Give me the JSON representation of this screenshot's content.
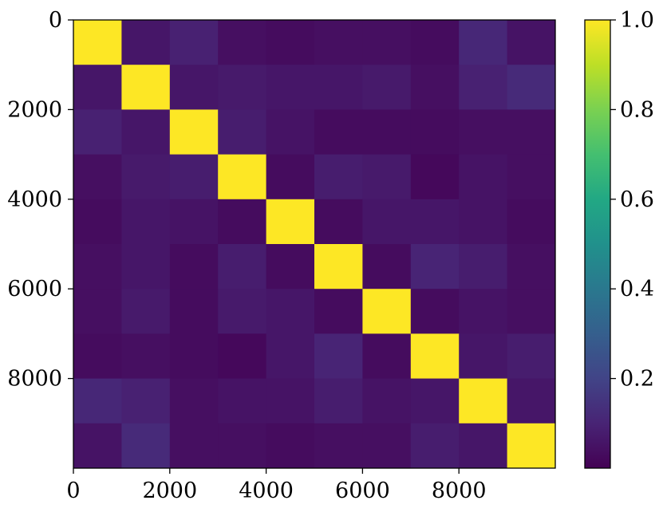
{
  "chart_data": {
    "type": "heatmap",
    "title": "",
    "xlabel": "",
    "ylabel": "",
    "x_range": [
      0,
      10000
    ],
    "y_range": [
      0,
      10000
    ],
    "y_inverted": true,
    "x_ticks": [
      0,
      2000,
      4000,
      6000,
      8000
    ],
    "y_ticks": [
      0,
      2000,
      4000,
      6000,
      8000
    ],
    "x_tick_labels": [
      "0",
      "2000",
      "4000",
      "6000",
      "8000"
    ],
    "y_tick_labels": [
      "0",
      "2000",
      "4000",
      "6000",
      "8000"
    ],
    "block_size": 1000,
    "colormap": "viridis",
    "colorbar": {
      "min": 0.0,
      "max": 1.0,
      "ticks": [
        0.2,
        0.4,
        0.6,
        0.8,
        1.0
      ],
      "tick_labels": [
        "0.2",
        "0.4",
        "0.6",
        "0.8",
        "1.0"
      ],
      "placement": "right"
    },
    "matrix": [
      [
        1.0,
        0.06,
        0.09,
        0.04,
        0.03,
        0.04,
        0.04,
        0.03,
        0.11,
        0.05
      ],
      [
        0.06,
        1.0,
        0.06,
        0.07,
        0.06,
        0.06,
        0.07,
        0.04,
        0.09,
        0.12
      ],
      [
        0.09,
        0.06,
        1.0,
        0.08,
        0.05,
        0.03,
        0.03,
        0.03,
        0.04,
        0.04
      ],
      [
        0.04,
        0.07,
        0.08,
        1.0,
        0.03,
        0.08,
        0.07,
        0.02,
        0.05,
        0.04
      ],
      [
        0.03,
        0.06,
        0.05,
        0.03,
        1.0,
        0.03,
        0.06,
        0.06,
        0.05,
        0.03
      ],
      [
        0.04,
        0.06,
        0.03,
        0.08,
        0.03,
        1.0,
        0.03,
        0.1,
        0.08,
        0.04
      ],
      [
        0.04,
        0.07,
        0.03,
        0.07,
        0.06,
        0.03,
        1.0,
        0.03,
        0.05,
        0.04
      ],
      [
        0.03,
        0.04,
        0.03,
        0.02,
        0.06,
        0.1,
        0.03,
        1.0,
        0.06,
        0.08
      ],
      [
        0.11,
        0.09,
        0.04,
        0.05,
        0.05,
        0.08,
        0.05,
        0.06,
        1.0,
        0.06
      ],
      [
        0.05,
        0.12,
        0.04,
        0.04,
        0.03,
        0.04,
        0.04,
        0.08,
        0.06,
        1.0
      ]
    ]
  }
}
